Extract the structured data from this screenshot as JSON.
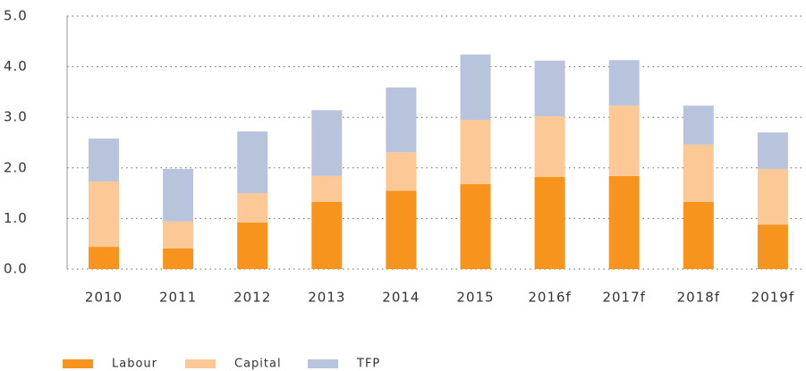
{
  "chart_data": {
    "type": "stacked_bar",
    "categories": [
      "2010",
      "2011",
      "2012",
      "2013",
      "2014",
      "2015",
      "2016f",
      "2017f",
      "2018f",
      "2019f"
    ],
    "series": [
      {
        "name": "Labour",
        "color": "#f7941d",
        "values": [
          0.44,
          0.41,
          0.92,
          1.33,
          1.55,
          1.68,
          1.82,
          1.84,
          1.33,
          0.88
        ]
      },
      {
        "name": "Capital",
        "color": "#fcc896",
        "values": [
          1.29,
          0.53,
          0.58,
          0.51,
          0.76,
          1.27,
          1.2,
          1.39,
          1.13,
          1.1
        ]
      },
      {
        "name": "TFP",
        "color": "#b8c4dc",
        "values": [
          0.85,
          1.04,
          1.22,
          1.3,
          1.28,
          1.29,
          1.1,
          0.9,
          0.77,
          0.72
        ]
      }
    ],
    "ylim": [
      0,
      5
    ],
    "yticks": [
      {
        "value": 0,
        "label": "0.0"
      },
      {
        "value": 1,
        "label": "1.0"
      },
      {
        "value": 2,
        "label": "2.0"
      },
      {
        "value": 3,
        "label": "3.0"
      },
      {
        "value": 4,
        "label": "4.0"
      },
      {
        "value": 5,
        "label": "5.0"
      }
    ],
    "grid": true
  }
}
